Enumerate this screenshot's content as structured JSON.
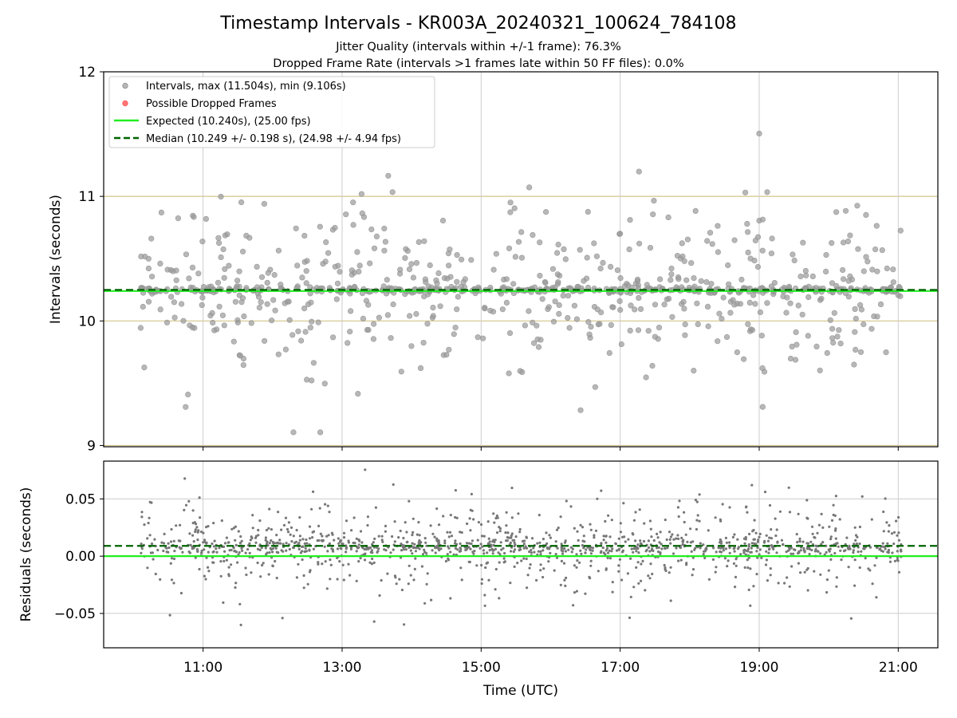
{
  "chart_data": [
    {
      "type": "scatter",
      "title": "Timestamp Intervals - KR003A_20240321_100624_784108",
      "subtitle_lines": [
        "Jitter Quality (intervals within +/-1 frame): 76.3%",
        "Dropped Frame Rate (intervals >1 frames late within 50 FF files): 0.0%"
      ],
      "xlabel": "",
      "ylabel": "Intervals (seconds)",
      "xlim": [
        9.57,
        21.57
      ],
      "ylim": [
        8.99,
        12.0
      ],
      "yticks": [
        9,
        10,
        11,
        12
      ],
      "ytick_labels": [
        "9",
        "10",
        "11",
        "12"
      ],
      "xticks": [
        11,
        13,
        15,
        17,
        19,
        21
      ],
      "grid": true,
      "legend_placement": "top-left",
      "legend": [
        "Intervals, max (11.504s), min (9.106s)",
        "Possible Dropped Frames",
        "Expected (10.240s), (25.00 fps)",
        "Median (10.249 +/- 0.198 s), (24.98 +/- 4.94 fps)"
      ],
      "series": [
        {
          "name": "Intervals, max (11.504s), min (9.106s)",
          "color": "#999999",
          "x_range": [
            10.1,
            21.05
          ],
          "y_min": 9.106,
          "y_max": 11.504,
          "y_center": 10.249,
          "y_std": 0.198,
          "shown_point_count": 900,
          "note_values": "dense band at 10.24-10.26 s"
        },
        {
          "name": "Possible Dropped Frames",
          "color": "#ff6666",
          "points": []
        }
      ],
      "reference_lines": [
        {
          "name": "Expected (10.240s), (25.00 fps)",
          "y": 10.24,
          "color": "#22ee22",
          "style": "solid"
        },
        {
          "name": "Median (10.249 +/- 0.198 s), (24.98 +/- 4.94 fps)",
          "y": 10.249,
          "color": "#006400",
          "style": "dashed"
        }
      ],
      "horizontal_bands": [
        {
          "y": 9.0,
          "color": "#d4c48a"
        },
        {
          "y": 10.0,
          "color": "#d4c48a"
        },
        {
          "y": 11.0,
          "color": "#d4c48a"
        }
      ]
    },
    {
      "type": "scatter",
      "xlabel": "Time (UTC)",
      "ylabel": "Residuals (seconds)",
      "xlim": [
        9.57,
        21.57
      ],
      "ylim": [
        -0.08,
        0.083
      ],
      "yticks": [
        -0.05,
        0.0,
        0.05
      ],
      "ytick_labels": [
        "−0.05",
        "0.00",
        "0.05"
      ],
      "xticks": [
        11,
        13,
        15,
        17,
        19,
        21
      ],
      "xtick_labels": [
        "11:00",
        "13:00",
        "15:00",
        "17:00",
        "19:00",
        "21:00"
      ],
      "grid": true,
      "series": [
        {
          "name": "",
          "color": "#777777",
          "x_range": [
            10.1,
            21.05
          ],
          "y_center": 0.008,
          "y_range_shown": [
            -0.08,
            0.083
          ],
          "shown_point_count": 1400
        }
      ],
      "reference_lines": [
        {
          "y": 0.0,
          "color": "#22ee22",
          "style": "solid"
        },
        {
          "y": 0.009,
          "color": "#006400",
          "style": "dashed"
        }
      ]
    }
  ],
  "colors": {
    "points_top": "#999999",
    "points_bottom": "#777777",
    "expected_line": "#22ee22",
    "median_line": "#006400",
    "dropped": "#ff6666",
    "band": "#d4c48a",
    "grid": "#cccccc"
  }
}
